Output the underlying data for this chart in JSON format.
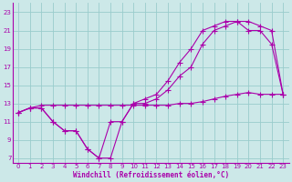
{
  "xlabel": "Windchill (Refroidissement éolien,°C)",
  "bg_color": "#cce8e8",
  "line_color": "#aa00aa",
  "grid_color": "#99cccc",
  "xlim": [
    -0.5,
    23.5
  ],
  "ylim": [
    6.5,
    24
  ],
  "xticks": [
    0,
    1,
    2,
    3,
    4,
    5,
    6,
    7,
    8,
    9,
    10,
    11,
    12,
    13,
    14,
    15,
    16,
    17,
    18,
    19,
    20,
    21,
    22,
    23
  ],
  "yticks": [
    7,
    9,
    11,
    13,
    15,
    17,
    19,
    21,
    23
  ],
  "curve1_x": [
    0,
    1,
    2,
    3,
    4,
    5,
    6,
    7,
    8,
    9,
    10,
    11,
    12,
    13,
    14,
    15,
    16,
    17,
    18,
    19,
    20,
    21,
    22,
    23
  ],
  "curve1_y": [
    12,
    12.5,
    12.5,
    11,
    10,
    10,
    8,
    7,
    7,
    11,
    13,
    13.5,
    14,
    15.5,
    17.5,
    19,
    21,
    21.5,
    22,
    22,
    21,
    21,
    19.5,
    14
  ],
  "curve2_x": [
    0,
    1,
    2,
    3,
    4,
    5,
    6,
    7,
    8,
    9,
    10,
    11,
    12,
    13,
    14,
    15,
    16,
    17,
    18,
    19,
    20,
    21,
    22,
    23
  ],
  "curve2_y": [
    12,
    12.5,
    12.5,
    11,
    10,
    10,
    8,
    7,
    11,
    11,
    13,
    13,
    13.5,
    14.5,
    16,
    17,
    19.5,
    21,
    21.5,
    22,
    22,
    21.5,
    21,
    14
  ],
  "curve3_x": [
    0,
    1,
    2,
    3,
    4,
    5,
    6,
    7,
    8,
    9,
    10,
    11,
    12,
    13,
    14,
    15,
    16,
    17,
    18,
    19,
    20,
    21,
    22,
    23
  ],
  "curve3_y": [
    12,
    12.5,
    12.8,
    12.8,
    12.8,
    12.8,
    12.8,
    12.8,
    12.8,
    12.8,
    12.8,
    12.8,
    12.8,
    12.8,
    13,
    13,
    13.2,
    13.5,
    13.8,
    14,
    14.2,
    14,
    14,
    14
  ]
}
